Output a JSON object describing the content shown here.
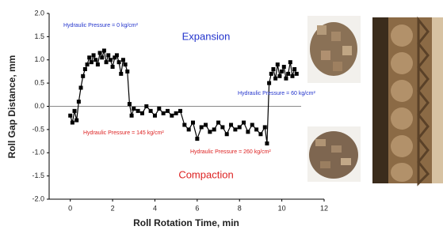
{
  "chart_data": {
    "type": "scatter",
    "xlabel": "Roll Rotation Time, min",
    "ylabel": "Roll Gap Distance, mm",
    "annotations": [
      "Hydraulic Pressure = 0 kg/cm²",
      "Expansion",
      "Hydraulic Pressure = 60 kg/cm²",
      "Hydraulic Pressure = 145 kg/cm²",
      "Hydraulic Pressure = 260 kg/cm²",
      "Compaction"
    ],
    "xlim": [
      -1,
      12
    ],
    "xticks": [
      0,
      2,
      4,
      6,
      8,
      10,
      12
    ],
    "ylim": [
      -2,
      2
    ],
    "yticks": [
      {
        "value": -2,
        "label": "-2.0"
      },
      -1.5,
      {
        "value": -1,
        "label": "-1.0"
      },
      -0.5,
      {
        "value": 0,
        "label": "0.0"
      },
      0.5,
      {
        "value": 1,
        "label": "1.0"
      },
      1.5,
      {
        "value": 2,
        "label": "2.0"
      }
    ],
    "hline": 0,
    "series": [
      {
        "color": "#000000",
        "x": [
          0.0,
          0.1,
          0.2,
          0.3,
          0.4,
          0.5,
          0.6,
          0.7,
          0.8,
          0.9,
          1.0,
          1.1,
          1.2,
          1.3,
          1.4,
          1.5,
          1.6,
          1.7,
          1.8,
          1.9,
          2.0,
          2.1,
          2.2,
          2.3,
          2.4,
          2.5,
          2.6,
          2.7,
          2.8,
          2.9,
          3.0,
          3.2,
          3.4,
          3.6,
          3.8,
          4.0,
          4.2,
          4.4,
          4.6,
          4.8,
          5.0,
          5.2,
          5.4,
          5.6,
          5.8,
          6.0,
          6.2,
          6.4,
          6.6,
          6.8,
          7.0,
          7.2,
          7.4,
          7.6,
          7.8,
          8.0,
          8.2,
          8.4,
          8.6,
          8.8,
          9.0,
          9.2,
          9.3,
          9.4,
          9.5,
          9.6,
          9.7,
          9.8,
          9.9,
          10.0,
          10.1,
          10.2,
          10.3,
          10.4,
          10.5,
          10.6,
          10.7
        ],
        "values": [
          -0.2,
          -0.35,
          -0.1,
          -0.3,
          0.1,
          0.4,
          0.65,
          0.8,
          0.9,
          1.05,
          0.95,
          1.1,
          1.0,
          0.9,
          1.15,
          1.05,
          1.2,
          0.95,
          1.1,
          1.0,
          0.85,
          1.05,
          1.1,
          0.95,
          0.7,
          1.0,
          0.9,
          0.75,
          0.05,
          -0.2,
          -0.05,
          -0.1,
          -0.15,
          0.0,
          -0.1,
          -0.2,
          -0.05,
          -0.15,
          -0.1,
          -0.2,
          -0.15,
          -0.1,
          -0.4,
          -0.5,
          -0.35,
          -0.7,
          -0.45,
          -0.4,
          -0.55,
          -0.5,
          -0.35,
          -0.45,
          -0.6,
          -0.4,
          -0.5,
          -0.45,
          -0.35,
          -0.55,
          -0.4,
          -0.5,
          -0.6,
          -0.45,
          -0.8,
          0.5,
          0.7,
          0.8,
          0.6,
          0.9,
          0.65,
          0.75,
          0.85,
          0.6,
          0.7,
          0.95,
          0.65,
          0.8,
          0.7
        ]
      }
    ]
  }
}
